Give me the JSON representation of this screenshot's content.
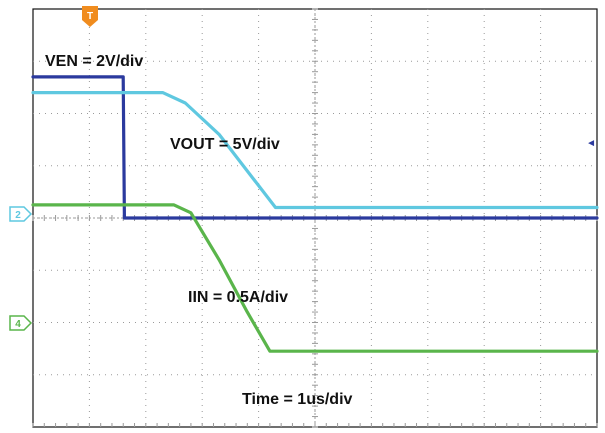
{
  "chart_data": {
    "type": "line",
    "grid": true,
    "x": {
      "divisions": 10,
      "range_div": [
        0,
        10
      ],
      "scale_label": "Time = 1us/div"
    },
    "y": {
      "divisions": 8,
      "range_div": [
        -4,
        4
      ]
    },
    "series": [
      {
        "name": "VEN",
        "scale_label": "VEN = 2V/div",
        "color": "#2b3a9e",
        "points": [
          [
            0,
            2.7
          ],
          [
            1.6,
            2.7
          ],
          [
            1.62,
            0
          ],
          [
            10,
            0
          ]
        ]
      },
      {
        "name": "VOUT",
        "scale_label": "VOUT = 5V/div",
        "color": "#5fc8e0",
        "points": [
          [
            0,
            2.4
          ],
          [
            2.3,
            2.4
          ],
          [
            2.7,
            2.2
          ],
          [
            3.3,
            1.6
          ],
          [
            3.8,
            0.9
          ],
          [
            4.3,
            0.2
          ],
          [
            10,
            0.2
          ]
        ]
      },
      {
        "name": "IIN",
        "scale_label": "IIN = 0.5A/div",
        "color": "#5ab54b",
        "points": [
          [
            0,
            0.25
          ],
          [
            2.5,
            0.25
          ],
          [
            2.8,
            0.1
          ],
          [
            3.3,
            -0.8
          ],
          [
            3.8,
            -1.8
          ],
          [
            4.2,
            -2.55
          ],
          [
            10,
            -2.55
          ]
        ]
      }
    ],
    "markers": {
      "trigger": "T",
      "channel_2": "2",
      "channel_4": "4",
      "right_arrow": "◄",
      "colors": {
        "trigger": "#f08c1e",
        "channel_2": "#5fc8e0",
        "channel_4": "#5ab54b",
        "right_arrow": "#2b3a9e"
      }
    }
  }
}
